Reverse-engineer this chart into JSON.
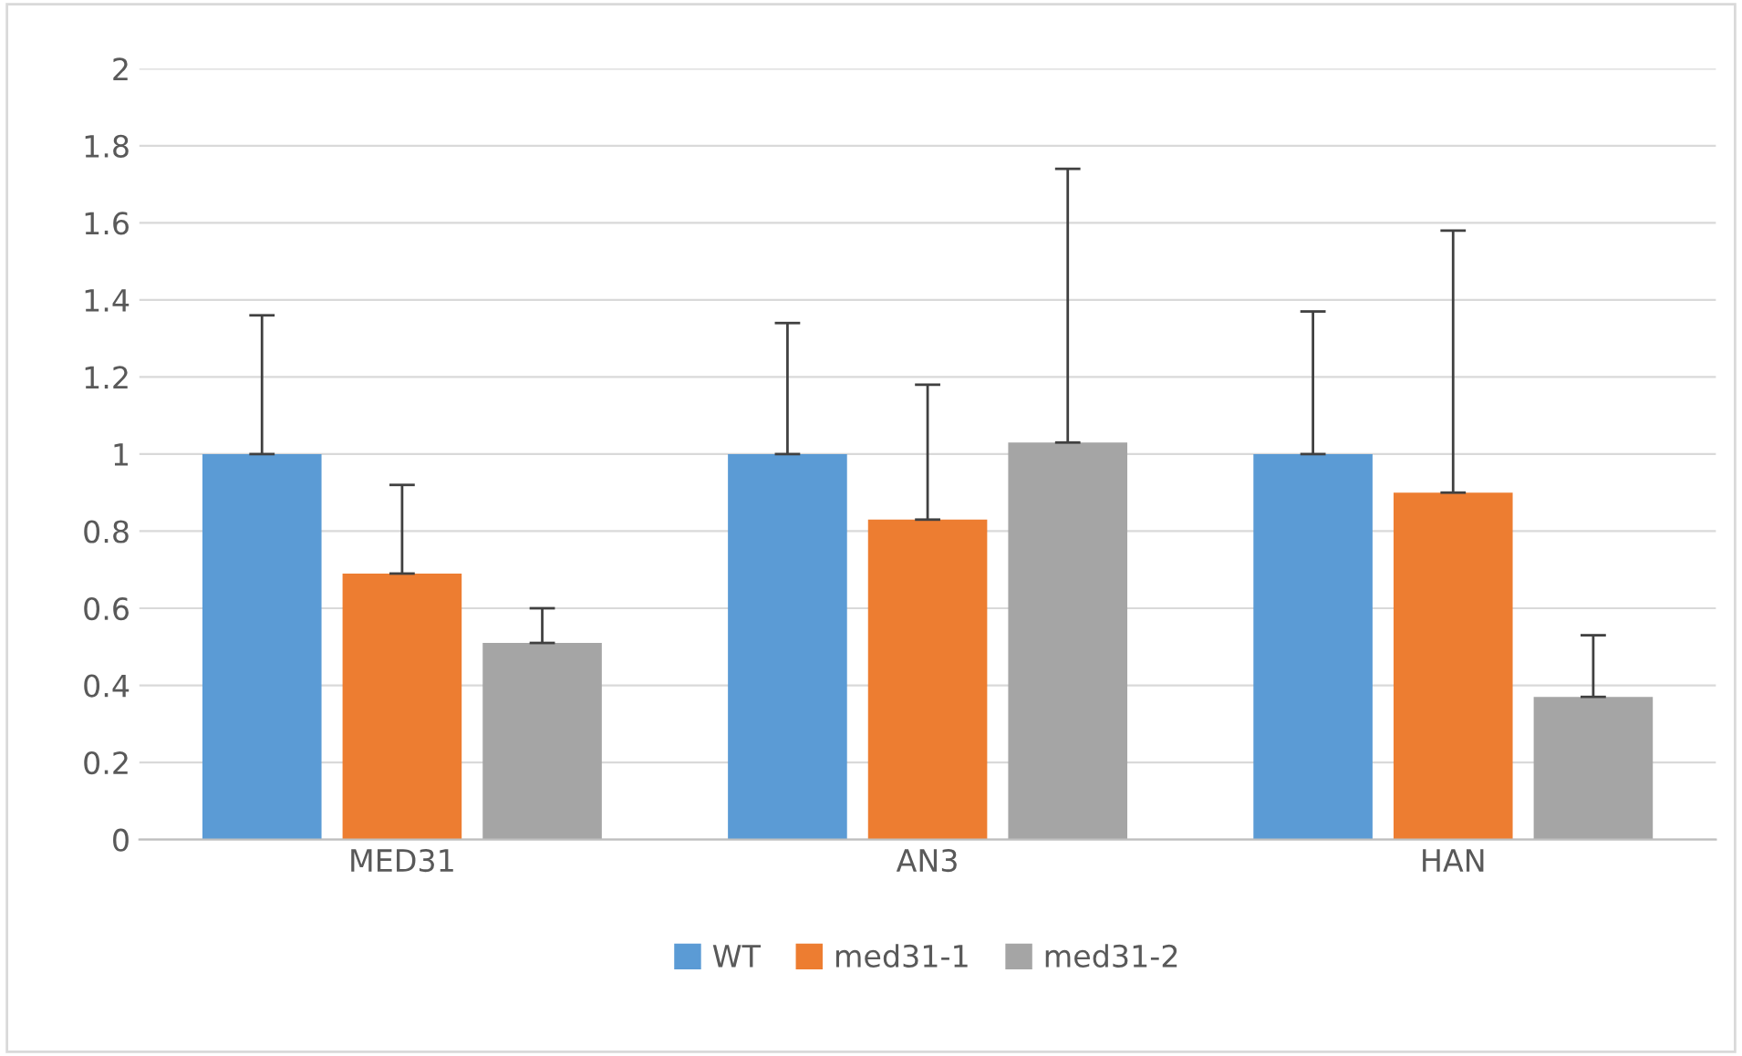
{
  "chart_data": {
    "type": "bar",
    "categories": [
      "MED31",
      "AN3",
      "HAN"
    ],
    "series": [
      {
        "name": "WT",
        "color": "#5b9bd5",
        "values": [
          1.0,
          1.0,
          1.0
        ],
        "errors": [
          [
            1.0,
            1.36
          ],
          [
            1.0,
            1.34
          ],
          [
            1.0,
            1.37
          ]
        ]
      },
      {
        "name": "med31-1",
        "color": "#ed7d31",
        "values": [
          0.69,
          0.83,
          0.9
        ],
        "errors": [
          [
            0.69,
            0.92
          ],
          [
            0.83,
            1.18
          ],
          [
            0.9,
            1.58
          ]
        ]
      },
      {
        "name": "med31-2",
        "color": "#a5a5a5",
        "values": [
          0.51,
          1.03,
          0.37
        ],
        "errors": [
          [
            0.51,
            0.6
          ],
          [
            1.03,
            1.74
          ],
          [
            0.37,
            0.53
          ]
        ]
      }
    ],
    "ylim": [
      0,
      2
    ],
    "yticks": [
      0,
      0.2,
      0.4,
      0.6,
      0.8,
      1,
      1.2,
      1.4,
      1.6,
      1.8,
      2
    ],
    "grid": "y",
    "legend": "bottom"
  }
}
